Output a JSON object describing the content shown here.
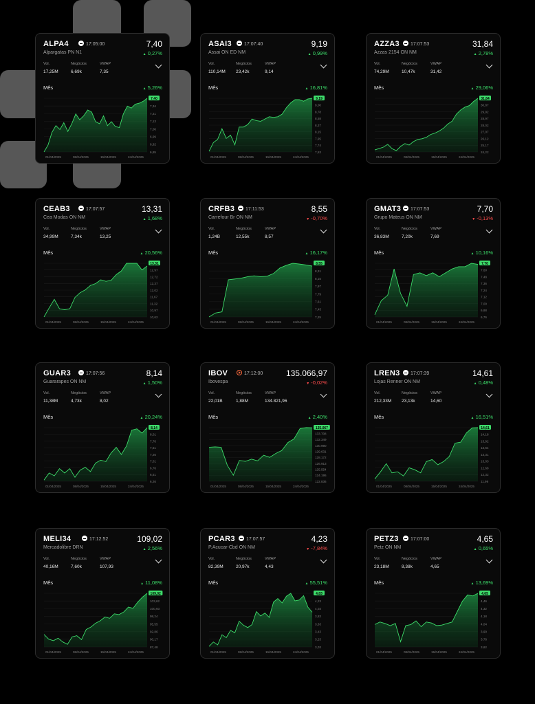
{
  "theme": {
    "accent_up": "#3ddc6a",
    "accent_down": "#ff4d4d",
    "card_bg": "#0a0a0a",
    "card_border": "#2c2c2c"
  },
  "labels": {
    "vol": "Vol.",
    "negocios": "Negócios",
    "vwap": "VWAP",
    "period": "Mês"
  },
  "icons": {
    "clock": "clock-icon",
    "expand": "chevron-down-icon"
  },
  "cards": [
    {
      "ticker": "ALPA4",
      "time": "17:05:00",
      "price": "7,40",
      "company": "Alpargatas PN N1",
      "change": "0,27%",
      "dir": "up",
      "vol": "17,25M",
      "negocios": "6,69k",
      "vwap": "7,35",
      "period_change": "5,26%",
      "period_dir": "up",
      "y_ticks": [
        "7,40",
        "7,34",
        "7,21",
        "7,13",
        "7,06",
        "6,99",
        "6,92",
        "6,85"
      ],
      "x_ticks": [
        "01/04/2025",
        "08/04/2025",
        "15/04/2025",
        "24/04/2025"
      ],
      "series": [
        6.85,
        6.92,
        7.05,
        7.12,
        7.08,
        7.15,
        7.06,
        7.14,
        7.24,
        7.18,
        7.22,
        7.28,
        7.26,
        7.16,
        7.14,
        7.22,
        7.12,
        7.16,
        7.11,
        7.1,
        7.24,
        7.32,
        7.3,
        7.34,
        7.35,
        7.37,
        7.4
      ]
    },
    {
      "ticker": "ASAI3",
      "time": "17:07:40",
      "price": "9,19",
      "company": "Assai ON ED NM",
      "change": "0,99%",
      "dir": "up",
      "vol": "110,14M",
      "negocios": "23,42k",
      "vwap": "9,14",
      "period_change": "16,81%",
      "period_dir": "up",
      "y_ticks": [
        "9,19",
        "9,00",
        "8,78",
        "8,58",
        "8,37",
        "8,15",
        "7,95",
        "7,74",
        "7,53"
      ],
      "x_ticks": [
        "01/04/2025",
        "08/04/2025",
        "15/04/2025",
        "24/04/2025"
      ],
      "series": [
        7.55,
        7.82,
        7.92,
        8.25,
        7.95,
        8.05,
        7.75,
        8.3,
        8.3,
        8.38,
        8.55,
        8.5,
        8.48,
        8.55,
        8.62,
        8.6,
        8.62,
        8.7,
        8.9,
        9.05,
        9.15,
        9.15,
        9.1,
        9.17,
        9.19
      ]
    },
    {
      "ticker": "AZZA3",
      "time": "17:07:53",
      "price": "31,84",
      "company": "Azzas 2154 ON NM",
      "change": "2,78%",
      "dir": "up",
      "vol": "74,29M",
      "negocios": "10,47k",
      "vwap": "31,42",
      "period_change": "29,06%",
      "period_dir": "up",
      "y_ticks": [
        "31,84",
        "30,87",
        "29,92",
        "28,97",
        "28,02",
        "27,07",
        "26,12",
        "25,17",
        "24,22"
      ],
      "x_ticks": [
        "01/04/2025",
        "08/04/2025",
        "15/04/2025",
        "24/04/2025"
      ],
      "series": [
        24.5,
        24.7,
        24.9,
        25.3,
        24.7,
        24.4,
        25.0,
        25.4,
        25.2,
        25.7,
        26.0,
        26.1,
        26.3,
        26.7,
        26.9,
        27.2,
        27.6,
        28.2,
        28.6,
        29.6,
        30.2,
        30.6,
        30.8,
        31.4,
        31.84
      ]
    },
    {
      "ticker": "CEAB3",
      "time": "17:07:57",
      "price": "13,31",
      "company": "Cea Modas ON NM",
      "change": "1,68%",
      "dir": "up",
      "vol": "34,99M",
      "negocios": "7,34k",
      "vwap": "13,25",
      "period_change": "20,56%",
      "period_dir": "up",
      "y_ticks": [
        "13,31",
        "12,97",
        "12,72",
        "12,37",
        "12,02",
        "11,67",
        "11,32",
        "10,97",
        "10,62"
      ],
      "x_ticks": [
        "01/04/2025",
        "08/04/2025",
        "15/04/2025",
        "24/04/2025"
      ],
      "series": [
        10.62,
        11.1,
        11.55,
        11.05,
        11.0,
        11.05,
        11.65,
        11.9,
        12.05,
        12.28,
        12.38,
        12.58,
        12.5,
        12.55,
        12.85,
        13.05,
        13.45,
        13.45,
        13.45,
        13.1,
        13.31
      ]
    },
    {
      "ticker": "CRFB3",
      "time": "17:11:53",
      "price": "8,55",
      "company": "Carrefour Br ON NM",
      "change": "-0,70%",
      "dir": "down",
      "vol": "1,24B",
      "negocios": "12,55k",
      "vwap": "8,57",
      "period_change": "16,17%",
      "period_dir": "up",
      "y_ticks": [
        "8,55",
        "8,31",
        "8,15",
        "7,97",
        "7,79",
        "7,61",
        "7,43",
        "7,25"
      ],
      "x_ticks": [
        "01/04/2025",
        "08/04/2025",
        "15/04/2025",
        "24/04/2025"
      ],
      "series": [
        7.25,
        7.35,
        7.38,
        8.2,
        8.22,
        8.24,
        8.28,
        8.3,
        8.28,
        8.29,
        8.36,
        8.5,
        8.57,
        8.62,
        8.6,
        8.58,
        8.55
      ]
    },
    {
      "ticker": "GMAT3",
      "time": "17:07:53",
      "price": "7,70",
      "company": "Grupo Mateus ON NM",
      "change": "-0,13%",
      "dir": "down",
      "vol": "36,83M",
      "negocios": "7,20k",
      "vwap": "7,69",
      "period_change": "10,16%",
      "period_dir": "up",
      "y_ticks": [
        "7,70",
        "7,60",
        "7,48",
        "7,36",
        "7,24",
        "7,12",
        "7,00",
        "6,88",
        "6,76"
      ],
      "x_ticks": [
        "01/04/2025",
        "08/04/2025",
        "15/04/2025",
        "24/04/2025"
      ],
      "series": [
        6.8,
        7.05,
        7.15,
        7.62,
        7.18,
        6.95,
        7.52,
        7.55,
        7.5,
        7.55,
        7.48,
        7.55,
        7.62,
        7.66,
        7.66,
        7.72,
        7.7
      ]
    },
    {
      "ticker": "GUAR3",
      "time": "17:07:56",
      "price": "8,14",
      "company": "Guararapes ON NM",
      "change": "1,50%",
      "dir": "up",
      "vol": "11,38M",
      "negocios": "4,73k",
      "vwap": "8,02",
      "period_change": "20,24%",
      "period_dir": "up",
      "y_ticks": [
        "8,14",
        "8,01",
        "7,76",
        "7,51",
        "7,26",
        "7,01",
        "6,76",
        "6,51",
        "6,26"
      ],
      "x_ticks": [
        "01/04/2025",
        "08/04/2025",
        "15/04/2025",
        "24/04/2025"
      ],
      "series": [
        6.3,
        6.55,
        6.45,
        6.7,
        6.55,
        6.7,
        6.4,
        6.65,
        6.75,
        6.6,
        6.9,
        7.0,
        6.95,
        7.25,
        7.45,
        7.2,
        7.5,
        8.05,
        8.1,
        7.95,
        8.14
      ]
    },
    {
      "ticker": "IBOV",
      "time": "17:12:00",
      "price": "135.066,97",
      "company": "Ibovespa",
      "change": "-0,02%",
      "dir": "down",
      "vol": "22,01B",
      "negocios": "1,88M",
      "vwap": "134.821,96",
      "period_change": "2,40%",
      "period_dir": "up",
      "y_ticks": [
        "135.067",
        "133.708",
        "132.349",
        "130.990",
        "129.631",
        "128.172",
        "126.913",
        "125.554",
        "124.195",
        "122.836"
      ],
      "x_ticks": [
        "01/04/2025",
        "08/04/2025",
        "15/04/2025",
        "24/04/2025"
      ],
      "series": [
        130600,
        130700,
        130600,
        126500,
        124200,
        127600,
        127400,
        127900,
        127500,
        128800,
        128300,
        129200,
        129900,
        131700,
        132500,
        134900,
        135100,
        135067
      ]
    },
    {
      "ticker": "LREN3",
      "time": "17:07:39",
      "price": "14,61",
      "company": "Lojas Renner ON NM",
      "change": "0,48%",
      "dir": "up",
      "vol": "212,33M",
      "negocios": "23,13k",
      "vwap": "14,60",
      "period_change": "16,51%",
      "period_dir": "up",
      "y_ticks": [
        "14,61",
        "14,18",
        "13,92",
        "13,64",
        "13,31",
        "13,03",
        "12,68",
        "12,32",
        "11,99"
      ],
      "x_ticks": [
        "01/04/2025",
        "08/04/2025",
        "15/04/2025",
        "24/04/2025"
      ],
      "series": [
        12.1,
        12.45,
        12.85,
        12.4,
        12.45,
        12.25,
        12.65,
        12.55,
        12.4,
        12.95,
        13.05,
        12.8,
        12.95,
        13.2,
        13.85,
        13.9,
        14.35,
        14.6,
        14.61
      ]
    },
    {
      "ticker": "MELI34",
      "time": "17:12:52",
      "price": "109,02",
      "company": "Mercadolibre DRN",
      "change": "2,56%",
      "dir": "up",
      "vol": "40,16M",
      "negocios": "7,60k",
      "vwap": "107,93",
      "period_change": "11,08%",
      "period_dir": "up",
      "y_ticks": [
        "109,02",
        "103,62",
        "100,93",
        "98,24",
        "95,55",
        "92,86",
        "90,17",
        "87,48"
      ],
      "x_ticks": [
        "01/04/2025",
        "08/04/2025",
        "15/04/2025",
        "24/04/2025"
      ],
      "series": [
        92.5,
        90.6,
        90.0,
        91.0,
        89.5,
        88.5,
        91.5,
        92.0,
        90.4,
        94.5,
        95.5,
        97.0,
        98.0,
        99.5,
        99.0,
        100.8,
        100.5,
        101.5,
        103.5,
        103.0,
        105.5,
        107.5,
        109.02
      ]
    },
    {
      "ticker": "PCAR3",
      "time": "17:07:57",
      "price": "4,23",
      "company": "P.Acucar-Cbd ON NM",
      "change": "-7,84%",
      "dir": "down",
      "vol": "82,39M",
      "negocios": "20,97k",
      "vwap": "4,43",
      "period_change": "55,51%",
      "period_dir": "up",
      "y_ticks": [
        "4,83",
        "4,23",
        "4,03",
        "3,83",
        "3,63",
        "3,43",
        "3,23",
        "3,03"
      ],
      "x_ticks": [
        "01/04/2025",
        "08/04/2025",
        "15/04/2025",
        "24/04/2025"
      ],
      "series": [
        3.05,
        3.2,
        3.1,
        3.45,
        3.35,
        3.6,
        3.52,
        3.92,
        3.78,
        3.7,
        3.8,
        4.25,
        4.1,
        4.2,
        4.05,
        4.58,
        4.7,
        4.55,
        4.78,
        4.88,
        4.62,
        4.65,
        4.8,
        4.4,
        4.23
      ]
    },
    {
      "ticker": "PETZ3",
      "time": "17:07:00",
      "price": "4,65",
      "company": "Petz ON NM",
      "change": "0,65%",
      "dir": "up",
      "vol": "23,18M",
      "negocios": "8,38k",
      "vwap": "4,65",
      "period_change": "13,69%",
      "period_dir": "up",
      "y_ticks": [
        "4,65",
        "4,46",
        "4,32",
        "4,18",
        "4,04",
        "3,90",
        "3,76",
        "3,62"
      ],
      "x_ticks": [
        "01/04/2025",
        "08/04/2025",
        "15/04/2025",
        "24/04/2025"
      ],
      "series": [
        4.05,
        4.1,
        4.07,
        4.03,
        4.07,
        3.72,
        4.03,
        4.05,
        4.12,
        4.01,
        4.1,
        4.08,
        4.03,
        4.04,
        4.07,
        4.1,
        4.3,
        4.5,
        4.62,
        4.6,
        4.65
      ]
    }
  ]
}
